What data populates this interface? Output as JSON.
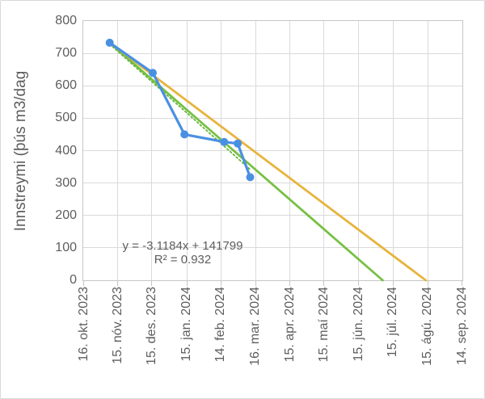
{
  "frame": {
    "background": "#ffffff",
    "border_color": "#d6d9db"
  },
  "chart_data": {
    "type": "line",
    "title": "",
    "xlabel": "",
    "ylabel": "Innstreymi (þús m3/dag",
    "grid": true,
    "legend": "none",
    "annotation": {
      "line1": "y = -3.1184x + 141799",
      "line2": "R² = 0.932"
    },
    "colors": {
      "observed": "#4a90e2",
      "green_projection": "#77c043",
      "orange_projection": "#e7b43e",
      "trendline": "#66b73d",
      "grid": "#dadada",
      "plot_border": "#c6c6c6",
      "tick": "#c6c6c6",
      "text": "#5d5d5d"
    },
    "y_axis": {
      "min": 0,
      "max": 800,
      "step": 100,
      "ticks": [
        800,
        700,
        600,
        500,
        400,
        300,
        200,
        100,
        0
      ]
    },
    "x_axis": {
      "origin_date": "16. okt. 2023",
      "span_days": 334,
      "ticks": [
        {
          "label": "16. okt. 2023",
          "day": 0
        },
        {
          "label": "15. nóv. 2023",
          "day": 30
        },
        {
          "label": "15. des. 2023",
          "day": 60
        },
        {
          "label": "15. jan. 2024",
          "day": 91
        },
        {
          "label": "14. feb. 2024",
          "day": 121
        },
        {
          "label": "16. mar. 2024",
          "day": 152
        },
        {
          "label": "15. apr. 2024",
          "day": 182
        },
        {
          "label": "15. maí 2024",
          "day": 212
        },
        {
          "label": "15. jún. 2024",
          "day": 243
        },
        {
          "label": "15. júl. 2024",
          "day": 273
        },
        {
          "label": "15. ágú. 2024",
          "day": 304
        },
        {
          "label": "14. sep. 2024",
          "day": 334
        }
      ]
    },
    "series": [
      {
        "id": "green-projection-to-zero",
        "color_key": "green_projection",
        "style": "solid",
        "markers": false,
        "stroke_width": 2.8,
        "points": [
          {
            "day": 23,
            "approx_date": "8. nóv. 2023",
            "value": 733
          },
          {
            "day": 264,
            "approx_date": "6. júl. 2024",
            "value": 0
          }
        ]
      },
      {
        "id": "orange-projection-to-zero",
        "color_key": "orange_projection",
        "style": "solid",
        "markers": false,
        "stroke_width": 2.8,
        "points": [
          {
            "day": 23,
            "approx_date": "8. nóv. 2023",
            "value": 733
          },
          {
            "day": 302,
            "approx_date": "13. ágú. 2024",
            "value": 0
          }
        ]
      },
      {
        "id": "linear-trendline",
        "color_key": "trendline",
        "style": "dotted",
        "markers": false,
        "stroke_width": 1.8,
        "points": [
          {
            "day": 23,
            "approx_date": "8. nóv. 2023",
            "value": 729
          },
          {
            "day": 147,
            "approx_date": "11. mar. 2024",
            "value": 342
          }
        ]
      },
      {
        "id": "observed-inflow",
        "color_key": "observed",
        "style": "solid",
        "markers": true,
        "marker_radius": 5,
        "stroke_width": 3.2,
        "points": [
          {
            "day": 23,
            "approx_date": "8. nóv. 2023",
            "value": 733
          },
          {
            "day": 61,
            "approx_date": "16. des. 2023",
            "value": 640
          },
          {
            "day": 89,
            "approx_date": "13. jan. 2024",
            "value": 450
          },
          {
            "day": 124,
            "approx_date": "17. feb. 2024",
            "value": 427
          },
          {
            "day": 136,
            "approx_date": "29. feb. 2024",
            "value": 422
          },
          {
            "day": 147,
            "approx_date": "11. mar. 2024",
            "value": 318
          }
        ]
      }
    ]
  }
}
